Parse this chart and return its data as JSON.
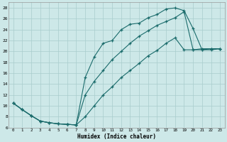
{
  "xlabel": "Humidex (Indice chaleur)",
  "xlim": [
    -0.5,
    23.5
  ],
  "ylim": [
    6,
    29
  ],
  "xticks": [
    0,
    1,
    2,
    3,
    4,
    5,
    6,
    7,
    8,
    9,
    10,
    11,
    12,
    13,
    14,
    15,
    16,
    17,
    18,
    19,
    20,
    21,
    22,
    23
  ],
  "yticks": [
    6,
    8,
    10,
    12,
    14,
    16,
    18,
    20,
    22,
    24,
    26,
    28
  ],
  "bg_color": "#cde8e8",
  "grid_color": "#a8cccc",
  "line_color": "#1a6b6b",
  "line1_x": [
    0,
    1,
    2,
    3,
    4,
    5,
    6,
    7,
    8,
    9,
    10,
    11,
    12,
    13,
    14,
    15,
    16,
    17,
    18,
    19,
    20,
    21,
    22,
    23
  ],
  "line1_y": [
    10.5,
    9.3,
    8.2,
    7.2,
    6.9,
    6.7,
    6.6,
    6.5,
    15.2,
    19.0,
    21.5,
    22.0,
    24.0,
    25.0,
    25.2,
    26.2,
    26.8,
    27.8,
    28.0,
    27.5,
    24.2,
    20.3,
    20.3,
    20.5
  ],
  "line2_x": [
    0,
    1,
    2,
    3,
    4,
    5,
    6,
    7,
    8,
    9,
    10,
    11,
    12,
    13,
    14,
    15,
    16,
    17,
    18,
    19,
    20,
    21,
    22,
    23
  ],
  "line2_y": [
    10.5,
    9.3,
    8.2,
    7.2,
    6.9,
    6.7,
    6.6,
    6.5,
    12.0,
    14.5,
    16.5,
    18.5,
    20.0,
    21.5,
    22.8,
    23.8,
    24.8,
    25.5,
    26.2,
    27.3,
    20.3,
    20.3,
    20.5,
    20.5
  ],
  "line3_x": [
    0,
    1,
    2,
    3,
    4,
    5,
    6,
    7,
    8,
    9,
    10,
    11,
    12,
    13,
    14,
    15,
    16,
    17,
    18,
    19,
    20,
    21,
    22,
    23
  ],
  "line3_y": [
    10.5,
    9.3,
    8.2,
    7.2,
    6.9,
    6.7,
    6.6,
    6.5,
    8.0,
    10.0,
    12.0,
    13.5,
    15.2,
    16.5,
    17.8,
    19.2,
    20.2,
    21.5,
    22.5,
    20.3,
    20.3,
    20.5,
    20.5,
    20.5
  ]
}
